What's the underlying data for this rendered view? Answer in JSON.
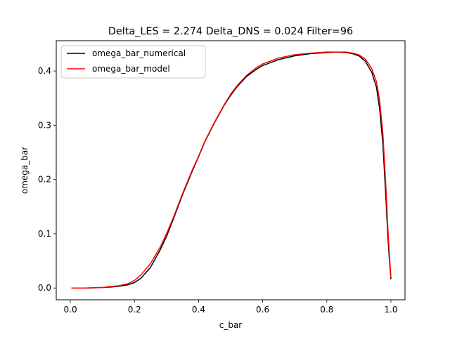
{
  "chart_data": {
    "type": "line",
    "title": "Delta_LES = 2.274 Delta_DNS = 0.024 Filter=96",
    "xlabel": "c_bar",
    "ylabel": "omega_bar",
    "xlim": [
      -0.044,
      1.044
    ],
    "ylim": [
      -0.0217,
      0.4558
    ],
    "xticks": [
      0.0,
      0.2,
      0.4,
      0.6,
      0.8,
      1.0
    ],
    "xtick_labels": [
      "0.0",
      "0.2",
      "0.4",
      "0.6",
      "0.8",
      "1.0"
    ],
    "yticks": [
      0.0,
      0.1,
      0.2,
      0.3,
      0.4
    ],
    "ytick_labels": [
      "0.0",
      "0.1",
      "0.2",
      "0.3",
      "0.4"
    ],
    "grid": false,
    "legend_position": "top-left",
    "series": [
      {
        "name": "omega_bar_numerical",
        "color": "#000000",
        "x": [
          0.005,
          0.05,
          0.1,
          0.13,
          0.15,
          0.18,
          0.2,
          0.22,
          0.25,
          0.28,
          0.3,
          0.32,
          0.35,
          0.38,
          0.4,
          0.42,
          0.45,
          0.48,
          0.5,
          0.52,
          0.55,
          0.58,
          0.6,
          0.65,
          0.7,
          0.75,
          0.8,
          0.83,
          0.86,
          0.88,
          0.9,
          0.92,
          0.94,
          0.955,
          0.965,
          0.975,
          0.985,
          0.99,
          0.995,
          1.0
        ],
        "y": [
          0.0,
          0.0,
          0.001,
          0.002,
          0.003,
          0.006,
          0.01,
          0.018,
          0.038,
          0.07,
          0.095,
          0.125,
          0.172,
          0.215,
          0.242,
          0.27,
          0.305,
          0.337,
          0.355,
          0.371,
          0.39,
          0.403,
          0.41,
          0.421,
          0.428,
          0.432,
          0.434,
          0.435,
          0.434,
          0.432,
          0.428,
          0.418,
          0.398,
          0.37,
          0.33,
          0.265,
          0.16,
          0.1,
          0.055,
          0.017
        ]
      },
      {
        "name": "omega_bar_model",
        "color": "#ff0000",
        "x": [
          0.005,
          0.05,
          0.1,
          0.13,
          0.15,
          0.18,
          0.2,
          0.22,
          0.25,
          0.28,
          0.3,
          0.32,
          0.35,
          0.38,
          0.4,
          0.42,
          0.45,
          0.48,
          0.5,
          0.52,
          0.55,
          0.58,
          0.6,
          0.65,
          0.7,
          0.75,
          0.8,
          0.83,
          0.86,
          0.88,
          0.9,
          0.92,
          0.94,
          0.955,
          0.965,
          0.975,
          0.985,
          0.99,
          0.995,
          1.0
        ],
        "y": [
          0.0,
          0.0,
          0.001,
          0.003,
          0.004,
          0.008,
          0.014,
          0.024,
          0.045,
          0.075,
          0.1,
          0.128,
          0.174,
          0.217,
          0.243,
          0.271,
          0.306,
          0.338,
          0.357,
          0.373,
          0.392,
          0.406,
          0.413,
          0.424,
          0.43,
          0.433,
          0.435,
          0.435,
          0.435,
          0.433,
          0.43,
          0.422,
          0.405,
          0.38,
          0.345,
          0.285,
          0.18,
          0.115,
          0.065,
          0.02
        ]
      }
    ]
  }
}
